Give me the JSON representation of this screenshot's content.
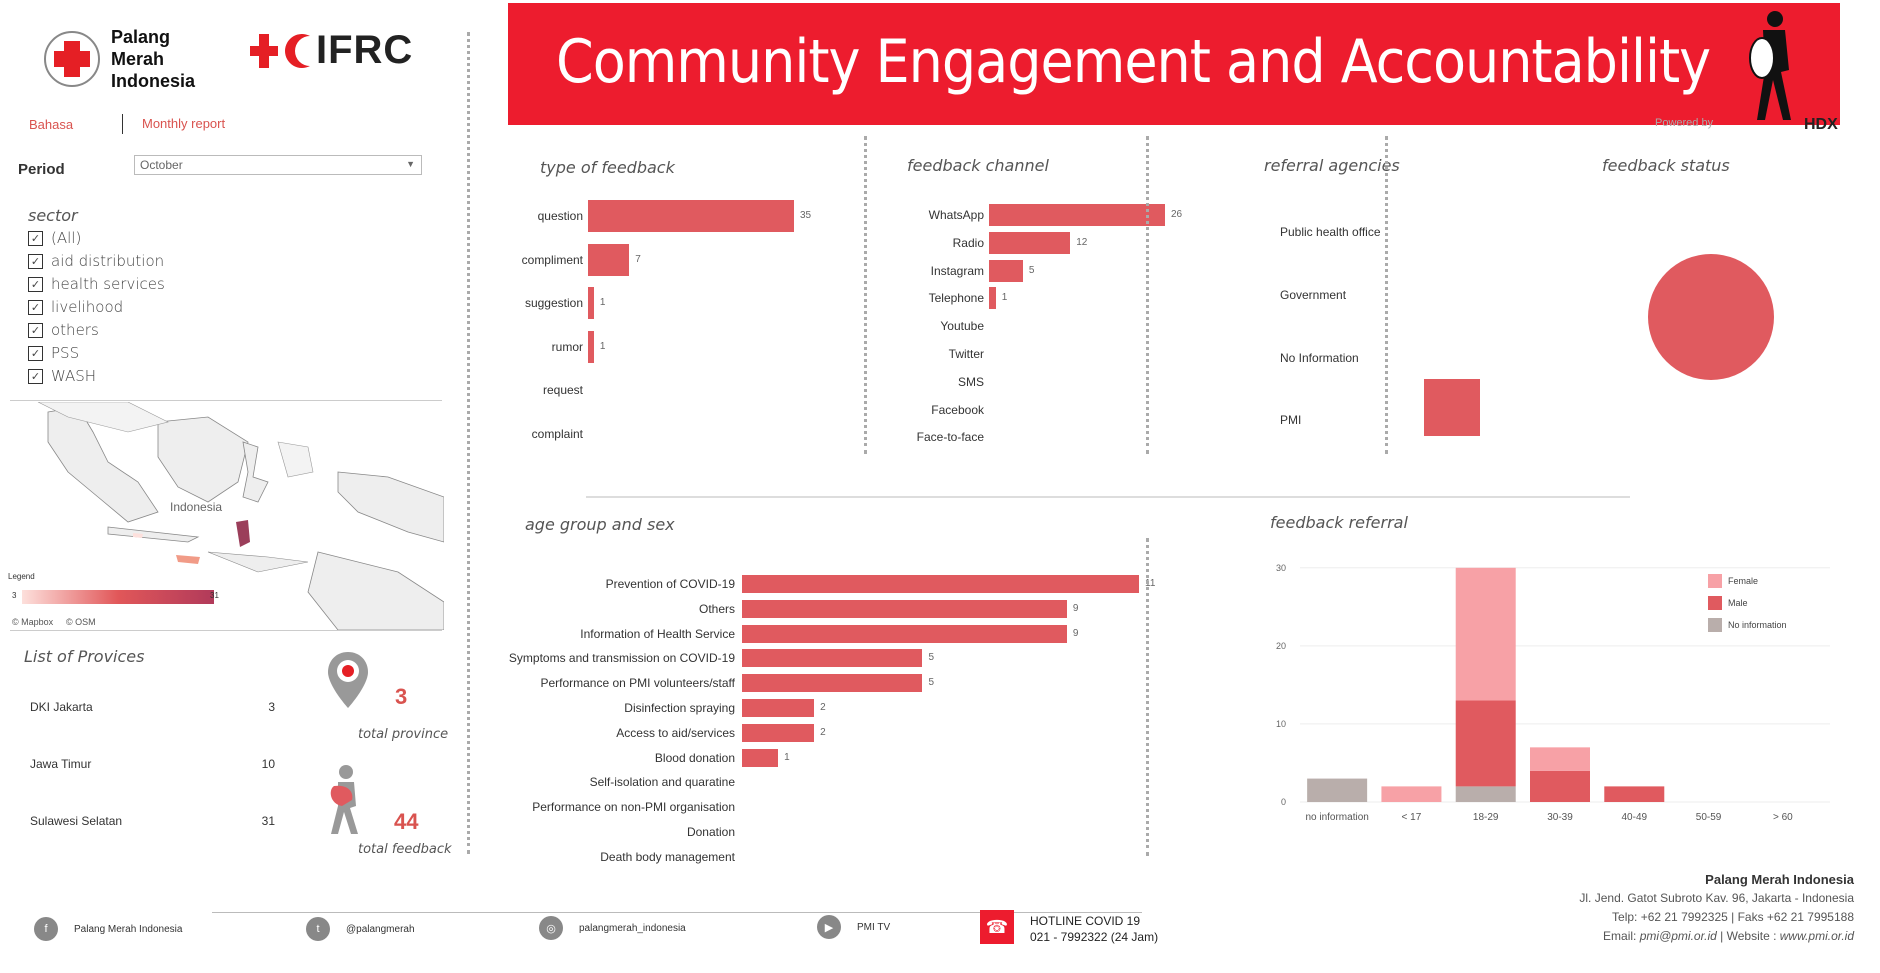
{
  "header": {
    "pmi_name": [
      "Palang",
      "Merah",
      "Indonesia"
    ],
    "ifrc_name": "IFRC",
    "title": "Community Engagement and Accountability",
    "powered_by": "Powered by",
    "hdx": "HDX",
    "brand_red": "#ed1c2e"
  },
  "nav": {
    "language_link": "Bahasa",
    "report_link": "Monthly report"
  },
  "filters": {
    "period_label": "Period",
    "period_value": "October",
    "sector_title": "sector",
    "sectors": [
      {
        "label": "(All)",
        "checked": true
      },
      {
        "label": "aid distribution",
        "checked": true
      },
      {
        "label": "health services",
        "checked": true
      },
      {
        "label": "livelihood",
        "checked": true
      },
      {
        "label": "others",
        "checked": true
      },
      {
        "label": "PSS",
        "checked": true
      },
      {
        "label": "WASH",
        "checked": true
      }
    ]
  },
  "map": {
    "label": "Indonesia",
    "legend_title": "Legend",
    "legend_min": "3",
    "legend_max": "31",
    "attribution": [
      "© Mapbox",
      "© OSM"
    ]
  },
  "provinces": {
    "title": "List of Provices",
    "rows": [
      {
        "name": "DKI Jakarta",
        "value": "3"
      },
      {
        "name": "Jawa Timur",
        "value": "10"
      },
      {
        "name": "Sulawesi Selatan",
        "value": "31"
      }
    ],
    "total_province_value": "3",
    "total_province_label": "total province",
    "total_feedback_value": "44",
    "total_feedback_label": "total feedback"
  },
  "type_of_feedback": {
    "title": "type of feedback",
    "items": [
      {
        "label": "question",
        "value": 35
      },
      {
        "label": "compliment",
        "value": 7
      },
      {
        "label": "suggestion",
        "value": 1
      },
      {
        "label": "rumor",
        "value": 1
      },
      {
        "label": "request",
        "value": null
      },
      {
        "label": "complaint",
        "value": null
      }
    ]
  },
  "feedback_channel": {
    "title": "feedback channel",
    "items": [
      {
        "label": "WhatsApp",
        "value": 26
      },
      {
        "label": "Radio",
        "value": 12
      },
      {
        "label": "Instagram",
        "value": 5
      },
      {
        "label": "Telephone",
        "value": 1
      },
      {
        "label": "Youtube",
        "value": null
      },
      {
        "label": "Twitter",
        "value": null
      },
      {
        "label": "SMS",
        "value": null
      },
      {
        "label": "Facebook",
        "value": null
      },
      {
        "label": "Face-to-face",
        "value": null
      }
    ]
  },
  "referral_agencies": {
    "title": "referral agencies",
    "items": [
      {
        "label": "Public health office",
        "value": null
      },
      {
        "label": "Government",
        "value": null
      },
      {
        "label": "No Information",
        "value": null
      },
      {
        "label": "PMI",
        "value": 1
      }
    ]
  },
  "feedback_status": {
    "title": "feedback status"
  },
  "age_group": {
    "title": "age group and sex",
    "items": [
      {
        "label": "Prevention of COVID-19",
        "value": 11
      },
      {
        "label": "Others",
        "value": 9
      },
      {
        "label": "Information of Health Service",
        "value": 9
      },
      {
        "label": "Symptoms and transmission on COVID-19",
        "value": 5
      },
      {
        "label": "Performance on PMI volunteers/staff",
        "value": 5
      },
      {
        "label": "Disinfection spraying",
        "value": 2
      },
      {
        "label": "Access to aid/services",
        "value": 2
      },
      {
        "label": "Blood donation",
        "value": 1
      },
      {
        "label": "Self-isolation and quaratine",
        "value": null
      },
      {
        "label": "Performance on non-PMI organisation",
        "value": null
      },
      {
        "label": "Donation",
        "value": null
      },
      {
        "label": "Death body management",
        "value": null
      }
    ]
  },
  "chart_data": {
    "type": "bar",
    "title": "feedback referral",
    "categories": [
      "no information",
      "< 17",
      "18-29",
      "30-39",
      "40-49",
      "50-59",
      "> 60"
    ],
    "series": [
      {
        "name": "No information",
        "color": "#b9aeab",
        "values": [
          3,
          0,
          2,
          0,
          0,
          0,
          0
        ]
      },
      {
        "name": "Male",
        "color": "#e05a5f",
        "values": [
          0,
          0,
          11,
          4,
          2,
          0,
          0
        ]
      },
      {
        "name": "Female",
        "color": "#f7a1a6",
        "values": [
          0,
          2,
          17,
          3,
          0,
          0,
          0
        ]
      }
    ],
    "stacked": true,
    "yticks": [
      0,
      10,
      20,
      30
    ],
    "ylim": [
      0,
      31
    ],
    "legend": [
      "Female",
      "Male",
      "No information"
    ],
    "legend_position": "top-right"
  },
  "footer": {
    "facebook": "Palang Merah Indonesia",
    "twitter": "@palangmerah",
    "instagram": "palangmerah_indonesia",
    "youtube": "PMI TV",
    "hotline_title": "HOTLINE COVID 19",
    "hotline_number": "021 - 7992322 (24 Jam)",
    "org_name": "Palang Merah Indonesia",
    "address": "Jl. Jend. Gatot Subroto Kav. 96, Jakarta - Indonesia",
    "phone": "Telp: +62 21 7992325 | Faks +62 21 7995188",
    "email_prefix": "Email: ",
    "email": "pmi@pmi.or.id",
    "website_prefix": " | Website : ",
    "website": "www.pmi.or.id"
  }
}
